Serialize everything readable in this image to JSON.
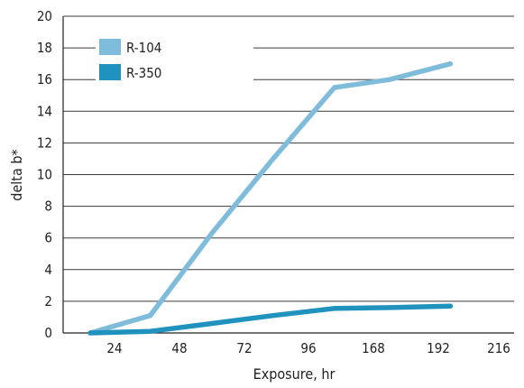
{
  "chart_data": {
    "type": "line",
    "title": "",
    "xlabel": "Exposure, hr",
    "ylabel": "delta b*",
    "categories": [
      "24",
      "48",
      "72",
      "96",
      "168",
      "192",
      "216"
    ],
    "ylim": [
      0,
      20
    ],
    "yticks": [
      "0",
      "2",
      "4",
      "6",
      "8",
      "10",
      "12",
      "14",
      "16",
      "18",
      "20"
    ],
    "grid": "horizontal",
    "legend_position": "top-left",
    "series": [
      {
        "name": "R-104",
        "color": "#7fbcdc",
        "points": [
          {
            "x": 0,
            "y": 0
          },
          {
            "x": 0.55,
            "y": 1.1
          },
          {
            "x": 1.5,
            "y": 6.3
          },
          {
            "x": 2.45,
            "y": 11.0
          },
          {
            "x": 3.4,
            "y": 15.5
          },
          {
            "x": 4.25,
            "y": 16.0
          },
          {
            "x": 5.2,
            "y": 17.0
          }
        ]
      },
      {
        "name": "R-350",
        "color": "#1f93be",
        "points": [
          {
            "x": 0,
            "y": 0
          },
          {
            "x": 0.55,
            "y": 0.1
          },
          {
            "x": 1.5,
            "y": 0.6
          },
          {
            "x": 2.45,
            "y": 1.1
          },
          {
            "x": 3.4,
            "y": 1.55
          },
          {
            "x": 4.25,
            "y": 1.6
          },
          {
            "x": 5.2,
            "y": 1.7
          }
        ]
      }
    ]
  }
}
